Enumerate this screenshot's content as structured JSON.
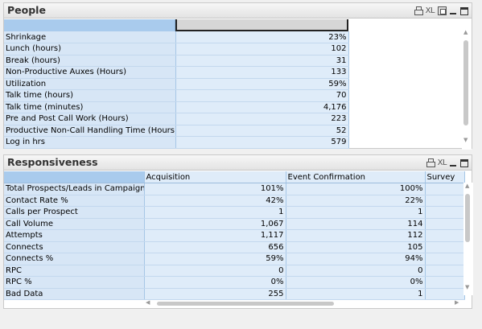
{
  "people": {
    "title": "People",
    "icons": [
      "print-icon",
      "xl-export-icon",
      "restore-icon",
      "minimize-icon",
      "maximize-icon"
    ],
    "xl_label": "XL",
    "rows": [
      {
        "label": "Shrinkage",
        "value": "23%"
      },
      {
        "label": "Lunch (hours)",
        "value": "102"
      },
      {
        "label": "Break (hours)",
        "value": "31"
      },
      {
        "label": "Non-Productive Auxes (Hours)",
        "value": "133"
      },
      {
        "label": "Utilization",
        "value": "59%"
      },
      {
        "label": "Talk time (hours)",
        "value": "70"
      },
      {
        "label": "Talk time (minutes)",
        "value": "4,176"
      },
      {
        "label": "Pre and Post Call Work (Hours)",
        "value": "223"
      },
      {
        "label": "Productive Non-Call Handling Time (Hours)",
        "value": "52"
      },
      {
        "label": "Log in hrs",
        "value": "579"
      }
    ]
  },
  "responsiveness": {
    "title": "Responsiveness",
    "xl_label": "XL",
    "columns": [
      "",
      "Acquisition",
      "Event Confirmation",
      "Survey"
    ],
    "rows": [
      {
        "label": "Total Prospects/Leads in Campaign",
        "acquisition": "101%",
        "event_confirmation": "100%",
        "survey": ""
      },
      {
        "label": "Contact Rate %",
        "acquisition": "42%",
        "event_confirmation": "22%",
        "survey": ""
      },
      {
        "label": "Calls per Prospect",
        "acquisition": "1",
        "event_confirmation": "1",
        "survey": ""
      },
      {
        "label": "Call Volume",
        "acquisition": "1,067",
        "event_confirmation": "114",
        "survey": ""
      },
      {
        "label": "Attempts",
        "acquisition": "1,117",
        "event_confirmation": "112",
        "survey": ""
      },
      {
        "label": "Connects",
        "acquisition": "656",
        "event_confirmation": "105",
        "survey": ""
      },
      {
        "label": "Connects %",
        "acquisition": "59%",
        "event_confirmation": "94%",
        "survey": ""
      },
      {
        "label": "RPC",
        "acquisition": "0",
        "event_confirmation": "0",
        "survey": ""
      },
      {
        "label": "RPC %",
        "acquisition": "0%",
        "event_confirmation": "0%",
        "survey": ""
      },
      {
        "label": "Bad Data",
        "acquisition": "255",
        "event_confirmation": "1",
        "survey": ""
      }
    ]
  },
  "colors": {
    "label_cell": "#d7e6f6",
    "value_cell": "#dfecf9",
    "header_selected": "#a9cbed"
  }
}
